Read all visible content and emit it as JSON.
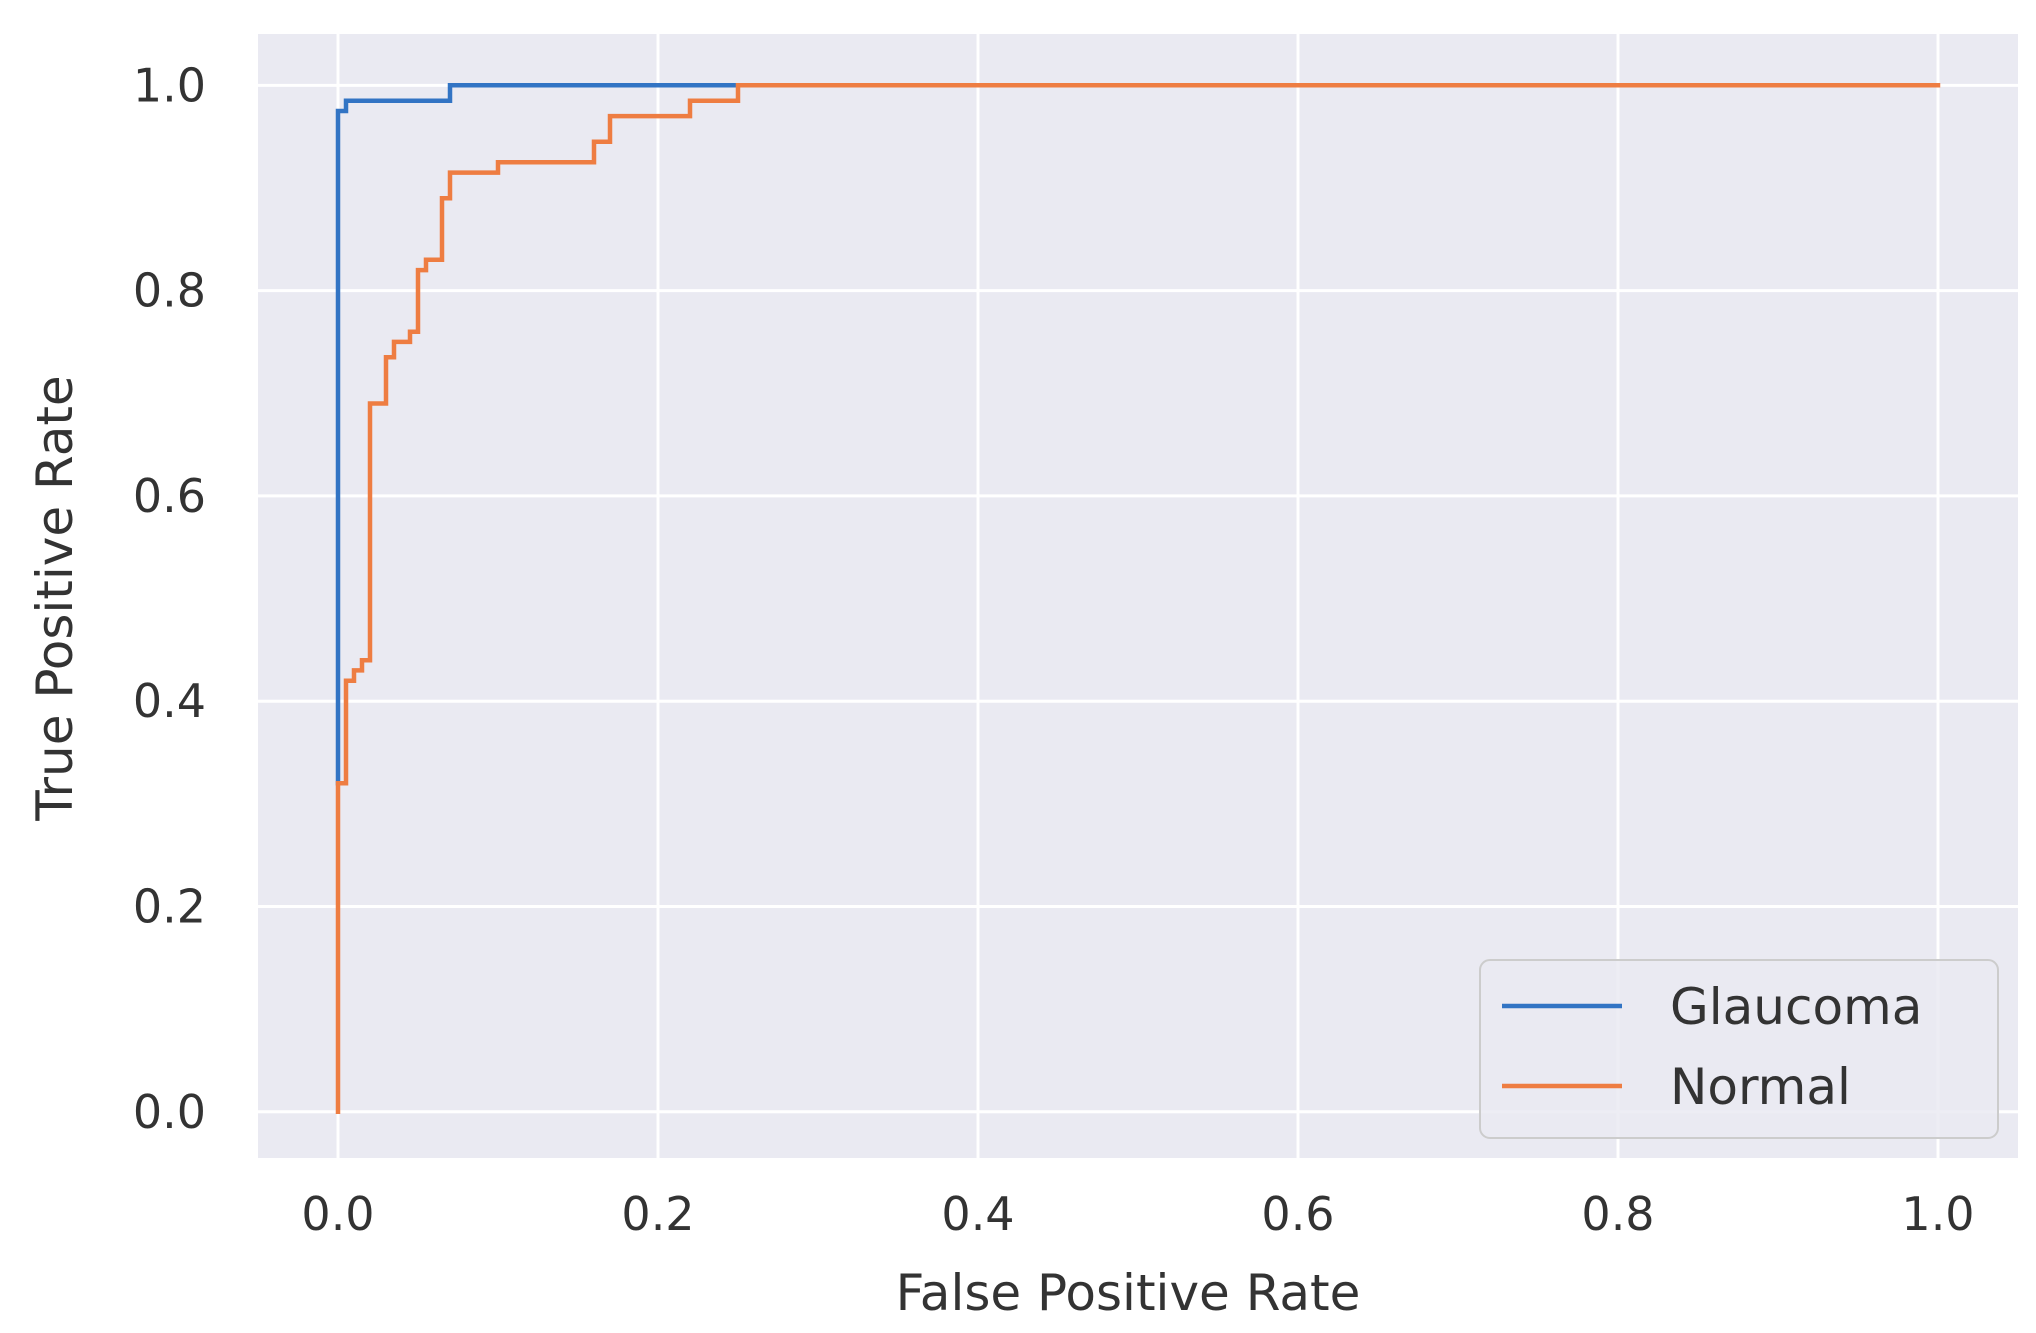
{
  "chart_data": {
    "type": "line",
    "title": "",
    "xlabel": "False Positive Rate",
    "ylabel": "True Positive Rate",
    "xlim": [
      -0.05,
      1.05
    ],
    "ylim": [
      -0.045,
      1.05
    ],
    "xticks": [
      0.0,
      0.2,
      0.4,
      0.6,
      0.8,
      1.0
    ],
    "yticks": [
      0.0,
      0.2,
      0.4,
      0.6,
      0.8,
      1.0
    ],
    "xtick_labels": [
      "0.0",
      "0.2",
      "0.4",
      "0.6",
      "0.8",
      "1.0"
    ],
    "ytick_labels": [
      "0.0",
      "0.2",
      "0.4",
      "0.6",
      "0.8",
      "1.0"
    ],
    "grid": true,
    "legend_position": "bottom-right",
    "background_color": "#eaeaf2",
    "series": [
      {
        "name": "Glaucoma",
        "color": "#3274c4",
        "x": [
          0,
          0,
          0,
          0.005,
          0.005,
          0.07,
          0.07,
          0.25
        ],
        "y": [
          0.32,
          0.97,
          0.975,
          0.975,
          0.985,
          0.985,
          1.0,
          1.0
        ]
      },
      {
        "name": "Normal",
        "color": "#ee7d42",
        "x": [
          0,
          0,
          0.005,
          0.005,
          0.01,
          0.01,
          0.015,
          0.015,
          0.02,
          0.02,
          0.03,
          0.03,
          0.035,
          0.035,
          0.045,
          0.045,
          0.05,
          0.05,
          0.055,
          0.055,
          0.065,
          0.065,
          0.07,
          0.07,
          0.1,
          0.1,
          0.16,
          0.16,
          0.17,
          0.17,
          0.22,
          0.22,
          0.25,
          0.25,
          1.0
        ],
        "y": [
          0,
          0.32,
          0.32,
          0.42,
          0.42,
          0.43,
          0.43,
          0.44,
          0.44,
          0.69,
          0.69,
          0.735,
          0.735,
          0.75,
          0.75,
          0.76,
          0.76,
          0.82,
          0.82,
          0.83,
          0.83,
          0.89,
          0.89,
          0.915,
          0.915,
          0.925,
          0.925,
          0.945,
          0.945,
          0.97,
          0.97,
          0.985,
          0.985,
          1.0,
          1.0
        ]
      }
    ]
  }
}
